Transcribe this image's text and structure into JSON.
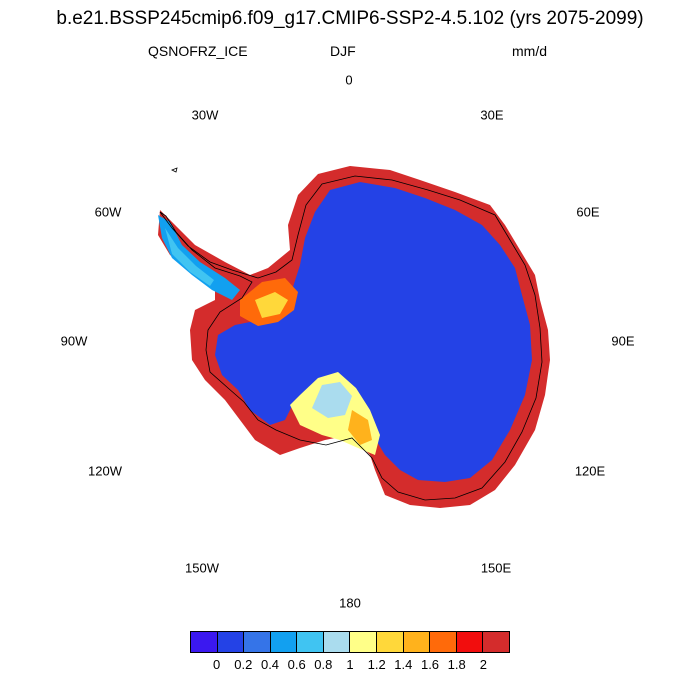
{
  "title": "b.e21.BSSP245cmip6.f09_g17.CMIP6-SSP2-4.5.102 (yrs 2075-2099)",
  "variable": "QSNOFRZ_ICE",
  "season": "DJF",
  "units": "mm/d",
  "longitude_labels": [
    "0",
    "30E",
    "60E",
    "90E",
    "120E",
    "150E",
    "180",
    "150W",
    "120W",
    "90W",
    "60W",
    "30W"
  ],
  "colorbar": {
    "colors": [
      "#3b18f0",
      "#2442e6",
      "#3574e8",
      "#12a0f0",
      "#40c4f2",
      "#aadcee",
      "#ffff88",
      "#ffd83a",
      "#ffb21c",
      "#ff6a0a",
      "#f20d0d",
      "#d42c2c"
    ],
    "tick_labels": [
      "0",
      "0.2",
      "0.4",
      "0.6",
      "0.8",
      "1",
      "1.2",
      "1.4",
      "1.6",
      "1.8",
      "2"
    ]
  },
  "map": {
    "projection": "south-polar-stereographic",
    "region": "Antarctica",
    "interior_color": "#2442e6",
    "coastal_color": "#d42c2c",
    "ross_shelf_color": "#ffff88",
    "weddell_color": "#ff6a0a"
  }
}
